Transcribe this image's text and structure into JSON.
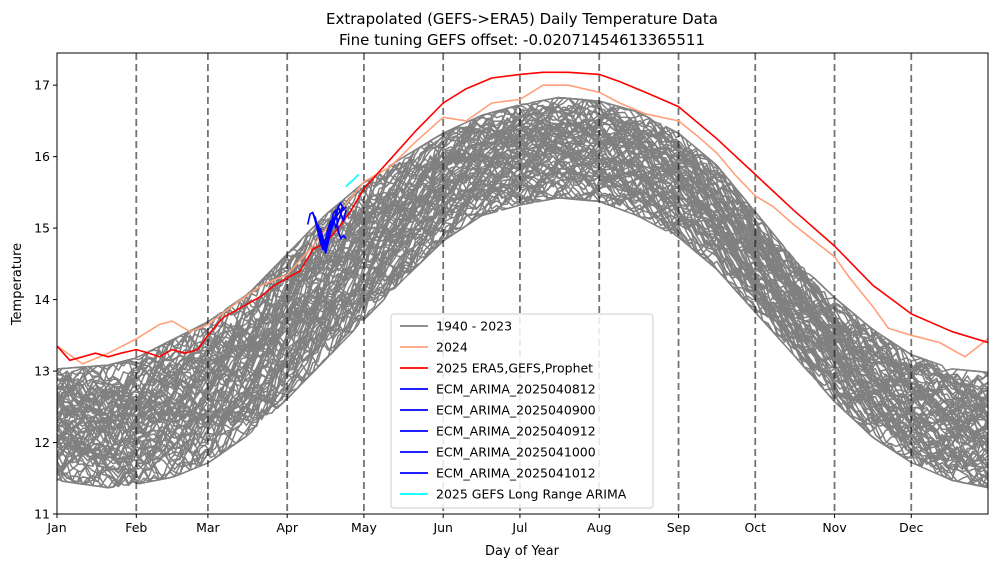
{
  "chart_data": {
    "type": "line",
    "title": "Extrapolated (GEFS->ERA5) Daily Temperature Data",
    "subtitle": "Fine tuning GEFS offset: -0.02071454613365511",
    "xlabel": "Day of Year",
    "ylabel": "Temperature",
    "xlim": [
      0,
      364
    ],
    "ylim": [
      11,
      17.45
    ],
    "yticks": [
      11,
      12,
      13,
      14,
      15,
      16,
      17
    ],
    "months": [
      {
        "label": "Jan",
        "day": 0
      },
      {
        "label": "Feb",
        "day": 31
      },
      {
        "label": "Mar",
        "day": 59
      },
      {
        "label": "Apr",
        "day": 90
      },
      {
        "label": "May",
        "day": 120
      },
      {
        "label": "Jun",
        "day": 151
      },
      {
        "label": "Jul",
        "day": 181
      },
      {
        "label": "Aug",
        "day": 212
      },
      {
        "label": "Sep",
        "day": 243
      },
      {
        "label": "Oct",
        "day": 273
      },
      {
        "label": "Nov",
        "day": 304
      },
      {
        "label": "Dec",
        "day": 334
      }
    ],
    "grid": false,
    "month_lines": "dashed",
    "legend_position": "lower center",
    "legend": [
      {
        "label": "1940 - 2023",
        "color": "#808080"
      },
      {
        "label": "2024",
        "color": "#ffa07a"
      },
      {
        "label": "2025 ERA5,GEFS,Prophet",
        "color": "#ff0000"
      },
      {
        "label": "ECM_ARIMA_2025040812",
        "color": "#0000ff"
      },
      {
        "label": "ECM_ARIMA_2025040900",
        "color": "#0000ff"
      },
      {
        "label": "ECM_ARIMA_2025040912",
        "color": "#0000ff"
      },
      {
        "label": "ECM_ARIMA_2025041000",
        "color": "#0000ff"
      },
      {
        "label": "ECM_ARIMA_2025041012",
        "color": "#0000ff"
      },
      {
        "label": "2025 GEFS Long Range ARIMA",
        "color": "#00ffff"
      }
    ],
    "historical_band": {
      "name": "1940 - 2023",
      "color": "#808080",
      "count": 84,
      "x": [
        0,
        20,
        31,
        45,
        59,
        75,
        90,
        105,
        120,
        135,
        151,
        166,
        181,
        196,
        212,
        227,
        243,
        258,
        273,
        288,
        304,
        319,
        334,
        350,
        364
      ],
      "low": [
        11.5,
        11.4,
        11.45,
        11.55,
        11.75,
        12.15,
        12.65,
        13.2,
        13.75,
        14.3,
        14.85,
        15.2,
        15.35,
        15.45,
        15.4,
        15.2,
        14.9,
        14.45,
        13.85,
        13.25,
        12.6,
        12.1,
        11.75,
        11.5,
        11.4
      ],
      "high": [
        13.0,
        13.05,
        13.15,
        13.4,
        13.65,
        14.05,
        14.6,
        15.15,
        15.6,
        15.95,
        16.3,
        16.55,
        16.7,
        16.8,
        16.75,
        16.6,
        16.3,
        15.85,
        15.2,
        14.55,
        14.0,
        13.55,
        13.2,
        13.0,
        12.95
      ]
    },
    "series": [
      {
        "name": "2024",
        "color": "#ffa07a",
        "x": [
          0,
          10,
          20,
          31,
          40,
          45,
          52,
          59,
          70,
          80,
          90,
          100,
          110,
          120,
          130,
          140,
          151,
          160,
          170,
          181,
          190,
          200,
          212,
          220,
          230,
          243,
          250,
          258,
          265,
          273,
          280,
          288,
          295,
          304,
          310,
          319,
          325,
          334,
          345,
          355,
          364
        ],
        "y": [
          13.35,
          13.1,
          13.25,
          13.45,
          13.65,
          13.7,
          13.55,
          13.65,
          13.95,
          14.2,
          14.35,
          14.75,
          15.2,
          15.65,
          15.85,
          16.2,
          16.55,
          16.5,
          16.75,
          16.8,
          17.0,
          17.0,
          16.9,
          16.75,
          16.6,
          16.5,
          16.3,
          16.05,
          15.75,
          15.45,
          15.3,
          15.05,
          14.85,
          14.6,
          14.3,
          13.9,
          13.6,
          13.5,
          13.4,
          13.2,
          13.45
        ]
      },
      {
        "name": "2025 ERA5,GEFS,Prophet",
        "color": "#ff0000",
        "x": [
          0,
          5,
          10,
          15,
          20,
          25,
          31,
          36,
          40,
          45,
          50,
          55,
          59,
          65,
          70,
          75,
          80,
          85,
          90,
          95,
          100,
          105,
          110,
          115,
          120,
          130,
          140,
          151,
          160,
          170,
          181,
          190,
          200,
          212,
          220,
          230,
          243,
          258,
          273,
          288,
          304,
          319,
          334,
          350,
          364
        ],
        "y": [
          13.35,
          13.15,
          13.2,
          13.25,
          13.2,
          13.25,
          13.3,
          13.25,
          13.2,
          13.3,
          13.25,
          13.3,
          13.5,
          13.75,
          13.85,
          13.95,
          14.05,
          14.2,
          14.3,
          14.4,
          14.7,
          14.8,
          15.0,
          15.25,
          15.55,
          15.95,
          16.35,
          16.75,
          16.95,
          17.1,
          17.15,
          17.18,
          17.18,
          17.15,
          17.05,
          16.9,
          16.7,
          16.25,
          15.75,
          15.25,
          14.75,
          14.2,
          13.8,
          13.55,
          13.4
        ]
      },
      {
        "name": "ECM_ARIMA_2025040812",
        "color": "#0000ff",
        "x": [
          98,
          99,
          100,
          101,
          102,
          103,
          104,
          105,
          106,
          107,
          108,
          109,
          110,
          111,
          112
        ],
        "y": [
          15.05,
          15.2,
          15.22,
          15.1,
          14.95,
          14.8,
          14.7,
          14.85,
          15.0,
          15.1,
          15.05,
          15.15,
          15.2,
          15.25,
          15.3
        ]
      },
      {
        "name": "ECM_ARIMA_2025040900",
        "color": "#0000ff",
        "x": [
          100,
          101,
          102,
          103,
          104,
          105,
          106,
          107,
          108,
          109,
          110,
          111,
          112
        ],
        "y": [
          15.2,
          15.15,
          15.0,
          14.9,
          14.75,
          14.7,
          14.9,
          15.05,
          15.15,
          15.0,
          15.1,
          15.2,
          15.3
        ]
      },
      {
        "name": "ECM_ARIMA_2025040912",
        "color": "#0000ff",
        "x": [
          101,
          102,
          103,
          104,
          105,
          106,
          107,
          108,
          109,
          110,
          111,
          112,
          113
        ],
        "y": [
          15.1,
          15.0,
          14.85,
          14.8,
          14.75,
          14.9,
          15.0,
          15.2,
          15.25,
          14.95,
          14.85,
          14.9,
          14.85
        ]
      },
      {
        "name": "ECM_ARIMA_2025041000",
        "color": "#0000ff",
        "x": [
          102,
          103,
          104,
          105,
          106,
          107,
          108,
          109,
          110,
          111,
          112,
          113
        ],
        "y": [
          15.05,
          14.95,
          14.8,
          14.65,
          14.8,
          14.95,
          15.1,
          15.15,
          15.3,
          15.2,
          15.1,
          15.25
        ]
      },
      {
        "name": "ECM_ARIMA_2025041012",
        "color": "#0000ff",
        "x": [
          103,
          104,
          105,
          106,
          107,
          108,
          109,
          110,
          111,
          112,
          113
        ],
        "y": [
          15.0,
          14.85,
          14.75,
          14.85,
          14.95,
          15.05,
          15.2,
          15.3,
          15.35,
          15.25,
          15.3
        ]
      },
      {
        "name": "2025 GEFS Long Range ARIMA",
        "color": "#00ffff",
        "x": [
          113,
          114,
          115,
          116,
          117,
          118
        ],
        "y": [
          15.58,
          15.62,
          15.65,
          15.68,
          15.72,
          15.75
        ]
      }
    ]
  }
}
